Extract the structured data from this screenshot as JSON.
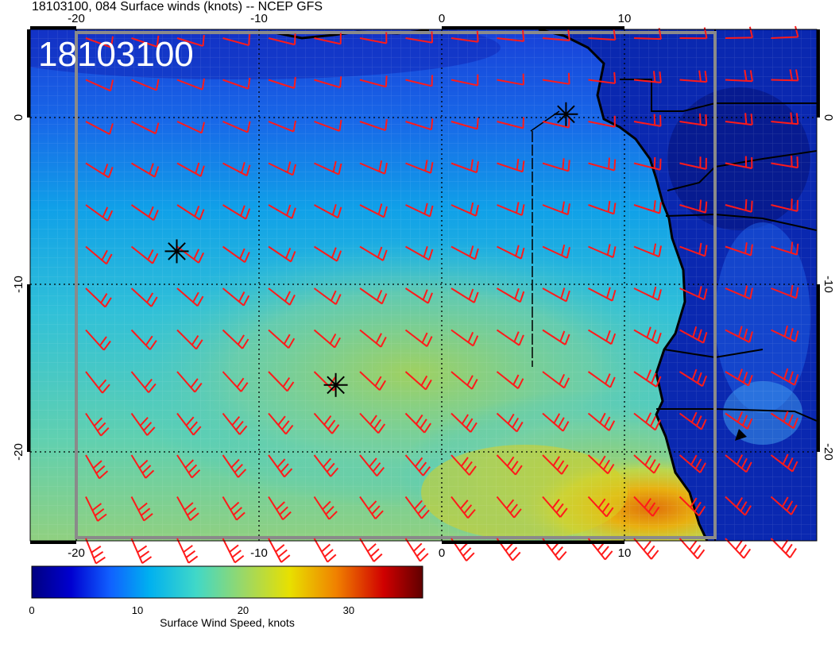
{
  "header": {
    "title": "18103100, 084 Surface winds (knots) -- NCEP GFS",
    "stamp": "18103100"
  },
  "map": {
    "lon_range": [
      -22.5,
      20.5
    ],
    "lat_range": [
      -25,
      5
    ],
    "lon_ticks_top": [
      "-20",
      "-10",
      "0",
      "10"
    ],
    "lon_ticks_bottom": [
      "-20",
      "-10",
      "0",
      "10"
    ],
    "lat_ticks_left": [
      "0",
      "-10",
      "-20"
    ],
    "lat_ticks_right": [
      "0",
      "-10",
      "-20"
    ],
    "gridlines": "dotted every 10 degrees",
    "markers": [
      {
        "name": "station-marker",
        "lon": 6.8,
        "lat": 0.2
      },
      {
        "name": "station-marker",
        "lon": -14.5,
        "lat": -8
      },
      {
        "name": "station-marker",
        "lon": -5.8,
        "lat": -16
      }
    ]
  },
  "colorbar": {
    "label": "Surface Wind Speed, knots",
    "ticks": [
      "0",
      "10",
      "20",
      "30"
    ],
    "range": [
      0,
      37
    ],
    "colors": [
      "#000080",
      "#0000d0",
      "#1060ff",
      "#00b0f0",
      "#40d8c8",
      "#a0d860",
      "#e8e000",
      "#f08000",
      "#d00000",
      "#600000"
    ]
  },
  "colors": {
    "barb": "#ff1a1a",
    "coast": "#000000",
    "frame": "#808080"
  }
}
